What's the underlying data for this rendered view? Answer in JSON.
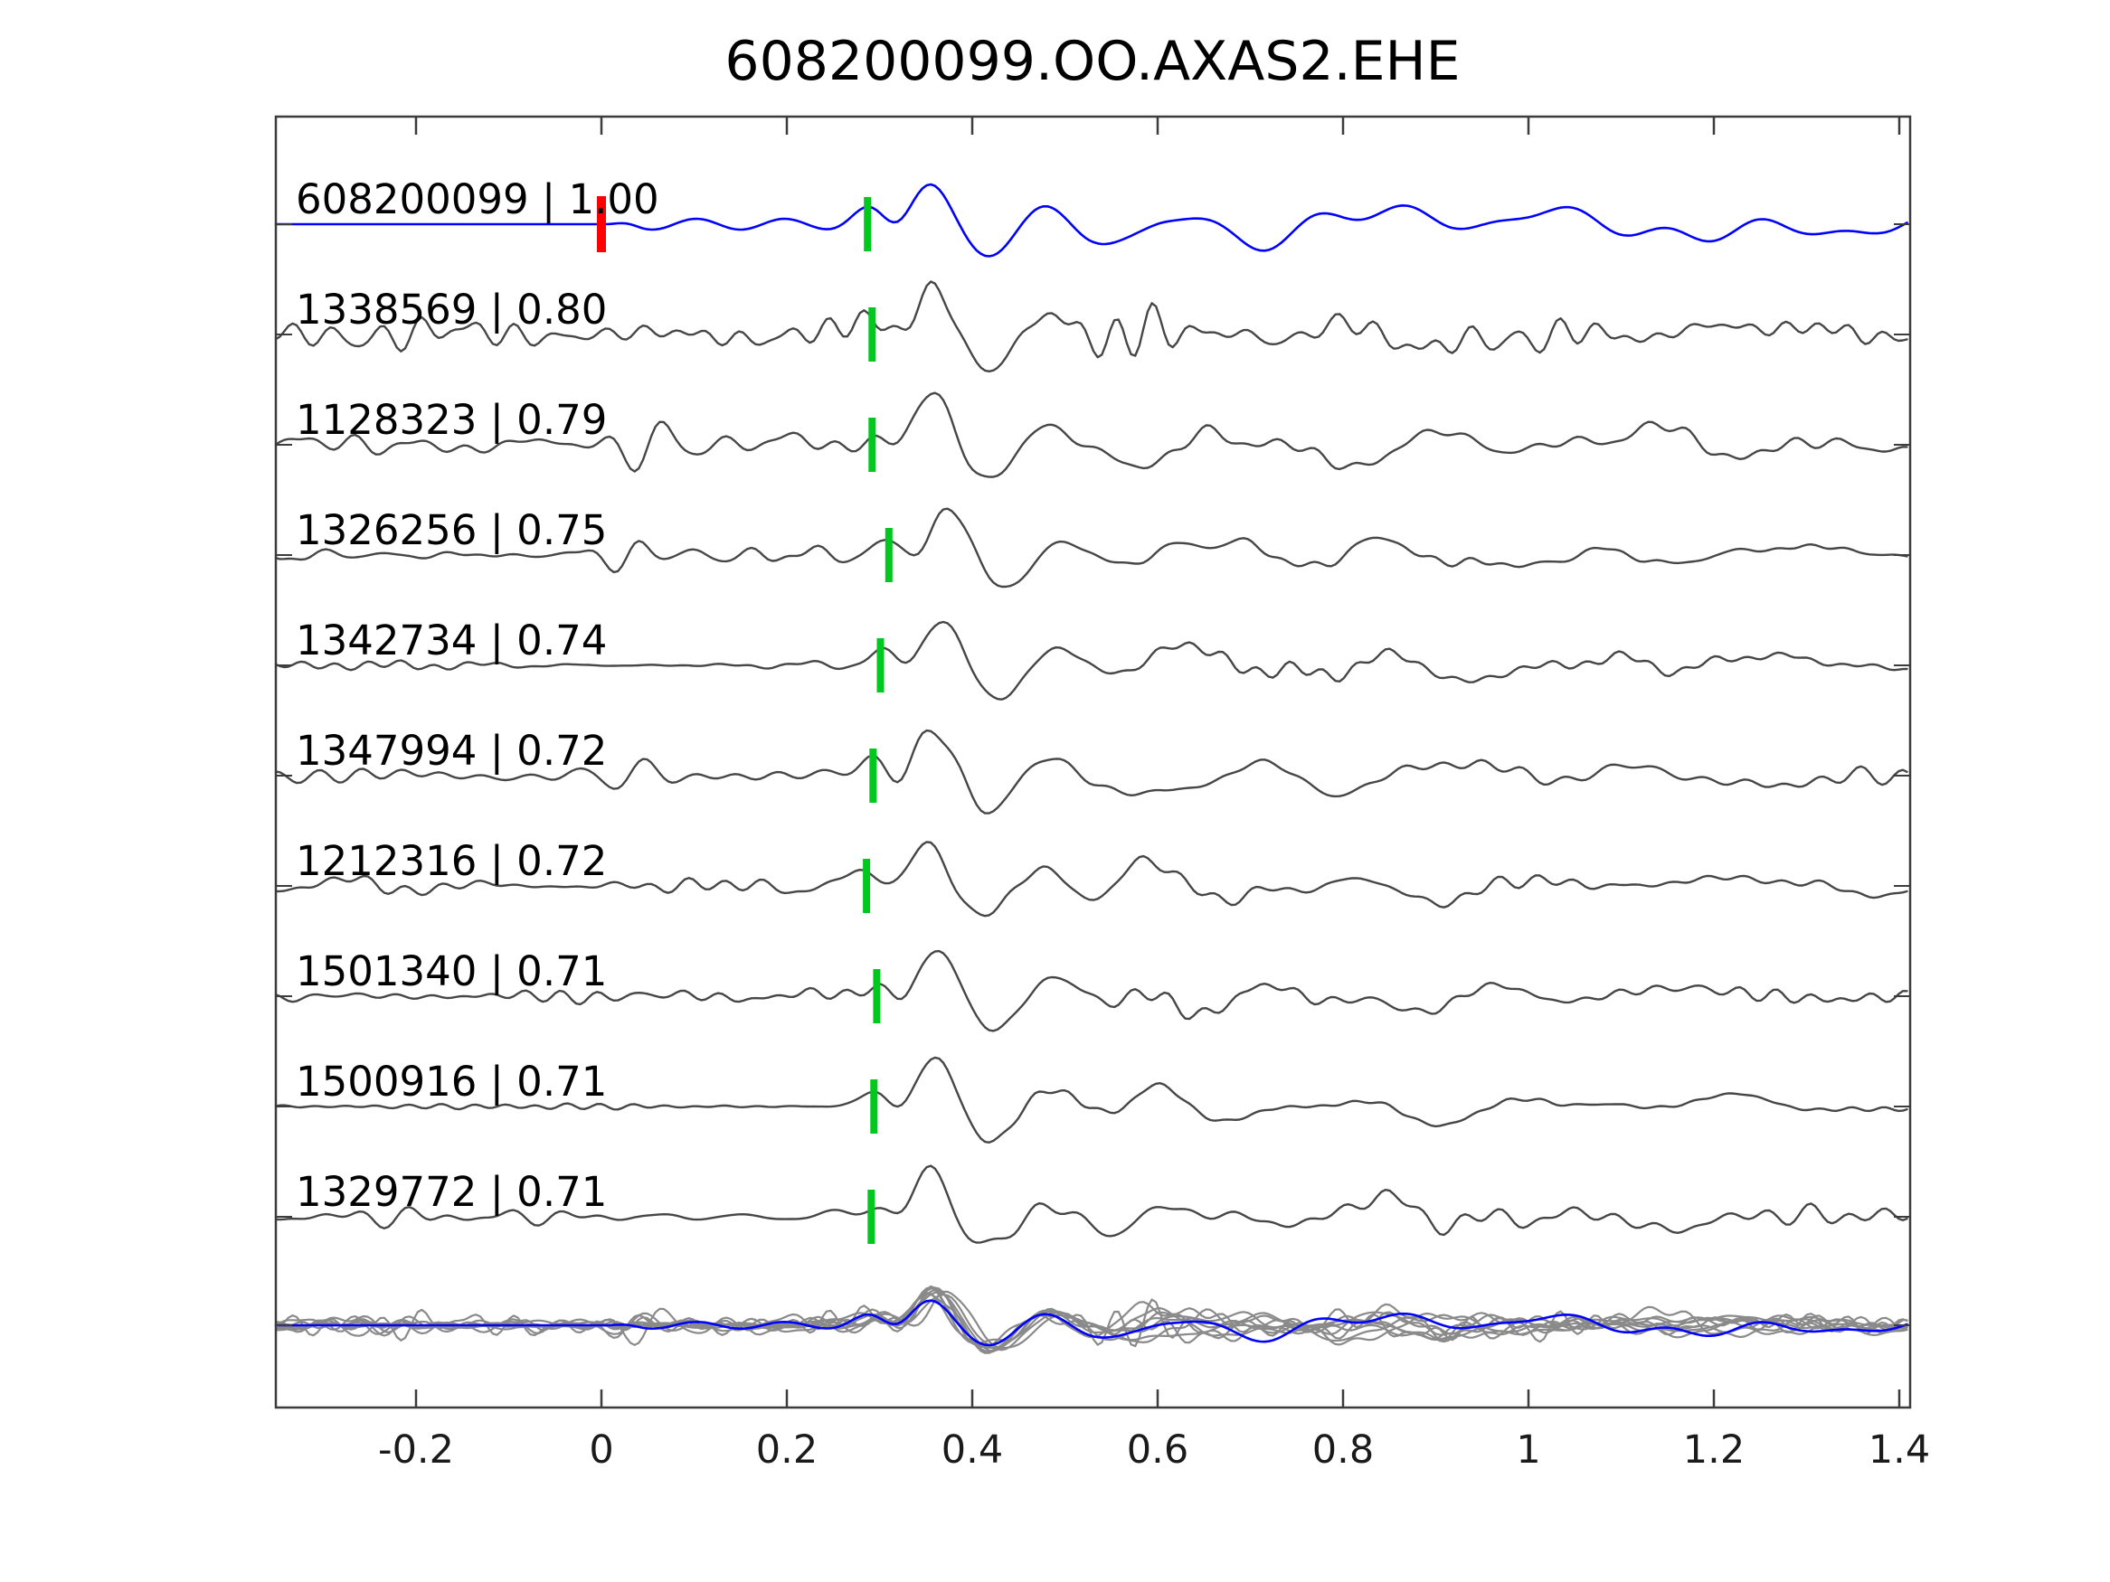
{
  "title": "608200099.OO.AXAS2.EHE",
  "colors": {
    "background": "#ffffff",
    "template_trace": "#0000ff",
    "detection_trace": "#464646",
    "overlay_gray": "#8a8a8a",
    "pick_marker_green": "#00c81e",
    "template_start_marker_red": "#ff0000",
    "axis": "#3c3c3c",
    "text": "#000000"
  },
  "chart_data": {
    "type": "line",
    "title": "608200099.OO.AXAS2.EHE",
    "xlabel": "",
    "ylabel": "",
    "grid": false,
    "legend": null,
    "xlim": [
      -0.351,
      1.412
    ],
    "xticks": [
      -0.2,
      0,
      0.2,
      0.4,
      0.6,
      0.8,
      1,
      1.2,
      1.4
    ],
    "xtick_labels": [
      "-0.2",
      "0",
      "0.2",
      "0.4",
      "0.6",
      "0.8",
      "1",
      "1.2",
      "1.4"
    ],
    "traces": [
      {
        "id": "608200099",
        "correlation": "1.00",
        "label": "608200099 | 1.00",
        "color": "#0000ff",
        "is_template": true,
        "start_marker_time": 0.0,
        "pick_time": 0.287,
        "noise_amp": 0,
        "arrival_amp": 55,
        "seed": 101
      },
      {
        "id": "1338569",
        "correlation": "0.80",
        "label": "1338569 | 0.80",
        "color": "#464646",
        "is_template": false,
        "pick_time": 0.292,
        "noise_amp": 13,
        "arrival_amp": 62,
        "seed": 7
      },
      {
        "id": "1128323",
        "correlation": "0.79",
        "label": "1128323 | 0.79",
        "color": "#464646",
        "is_template": false,
        "pick_time": 0.292,
        "noise_amp": 9,
        "arrival_amp": 64,
        "seed": 12,
        "burst": {
          "t": 0.05,
          "a": 30
        }
      },
      {
        "id": "1326256",
        "correlation": "0.75",
        "label": "1326256 | 0.75",
        "color": "#464646",
        "is_template": false,
        "pick_time": 0.31,
        "noise_amp": 5,
        "arrival_amp": 58,
        "seed": 3,
        "burst": {
          "t": 0.03,
          "a": 20
        }
      },
      {
        "id": "1342734",
        "correlation": "0.74",
        "label": "1342734 | 0.74",
        "color": "#464646",
        "is_template": false,
        "pick_time": 0.301,
        "noise_amp": 6,
        "arrival_amp": 60,
        "seed": 22
      },
      {
        "id": "1347994",
        "correlation": "0.72",
        "label": "1347994 | 0.72",
        "color": "#464646",
        "is_template": false,
        "pick_time": 0.293,
        "noise_amp": 5,
        "arrival_amp": 62,
        "seed": 31,
        "burst": {
          "t": 0.03,
          "a": 22
        }
      },
      {
        "id": "1212316",
        "correlation": "0.72",
        "label": "1212316 | 0.72",
        "color": "#464646",
        "is_template": false,
        "pick_time": 0.286,
        "noise_amp": 9,
        "arrival_amp": 58,
        "seed": 17
      },
      {
        "id": "1501340",
        "correlation": "0.71",
        "label": "1501340 | 0.71",
        "color": "#464646",
        "is_template": false,
        "pick_time": 0.297,
        "noise_amp": 8,
        "arrival_amp": 55,
        "seed": 41
      },
      {
        "id": "1500916",
        "correlation": "0.71",
        "label": "1500916 | 0.71",
        "color": "#464646",
        "is_template": false,
        "pick_time": 0.294,
        "noise_amp": 3,
        "arrival_amp": 62,
        "seed": 55
      },
      {
        "id": "1329772",
        "correlation": "0.71",
        "label": "1329772 | 0.71",
        "color": "#464646",
        "is_template": false,
        "pick_time": 0.291,
        "noise_amp": 10,
        "arrival_amp": 58,
        "seed": 66
      }
    ],
    "overlay": {
      "present": true,
      "gray_color": "#8a8a8a",
      "template_color": "#0000ff"
    }
  }
}
